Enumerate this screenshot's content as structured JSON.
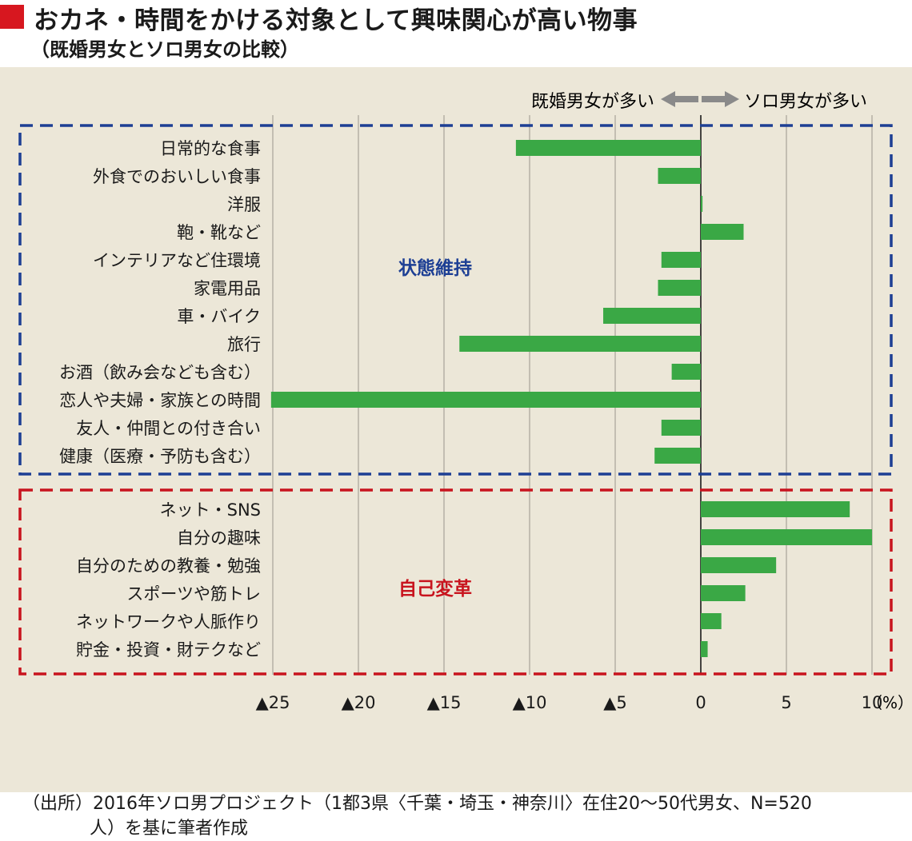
{
  "header": {
    "title": "おカネ・時間をかける対象として興味関心が高い物事",
    "subtitle": "（既婚男女とソロ男女の比較）"
  },
  "direction": {
    "left_label": "既婚男女が多い",
    "right_label": "ソロ男女が多い"
  },
  "groups": {
    "maintain_label": "状態維持",
    "transform_label": "自己変革"
  },
  "colors": {
    "bar": "#3aa845",
    "maintain": "#1d3f94",
    "transform": "#c8141e",
    "background": "#ece7d8",
    "title_mark": "#d7171f"
  },
  "chart_data": {
    "type": "bar",
    "orientation": "horizontal",
    "categories": [
      "日常的な食事",
      "外食でのおいしい食事",
      "洋服",
      "鞄・靴など",
      "インテリアなど住環境",
      "家電用品",
      "車・バイク",
      "旅行",
      "お酒（飲み会なども含む）",
      "恋人や夫婦・家族との時間",
      "友人・仲間との付き合い",
      "健康（医療・予防も含む）",
      "ネット・SNS",
      "自分の趣味",
      "自分のための教養・勉強",
      "スポーツや筋トレ",
      "ネットワークや人脈作り",
      "貯金・投資・財テクなど"
    ],
    "values": [
      -10.8,
      -2.5,
      0.1,
      2.5,
      -2.3,
      -2.5,
      -5.7,
      -14.1,
      -1.7,
      -25.1,
      -2.3,
      -2.7,
      8.7,
      10.0,
      4.4,
      2.6,
      1.2,
      0.4
    ],
    "groups": [
      {
        "name": "状態維持",
        "start": 0,
        "end": 11
      },
      {
        "name": "自己変革",
        "start": 12,
        "end": 17
      }
    ],
    "xlim": [
      -25,
      10
    ],
    "x_ticks": [
      -25,
      -20,
      -15,
      -10,
      -5,
      0,
      5,
      10
    ],
    "x_tick_labels": [
      "▲25",
      "▲20",
      "▲15",
      "▲10",
      "▲5",
      "0",
      "5",
      "10"
    ],
    "x_unit": "（%）",
    "grid": true
  },
  "source": {
    "line1": "（出所）2016年ソロ男プロジェクト（1都3県〈千葉・埼玉・神奈川〉在住20～50代男女、N=520",
    "line2": "人）を基に筆者作成"
  }
}
